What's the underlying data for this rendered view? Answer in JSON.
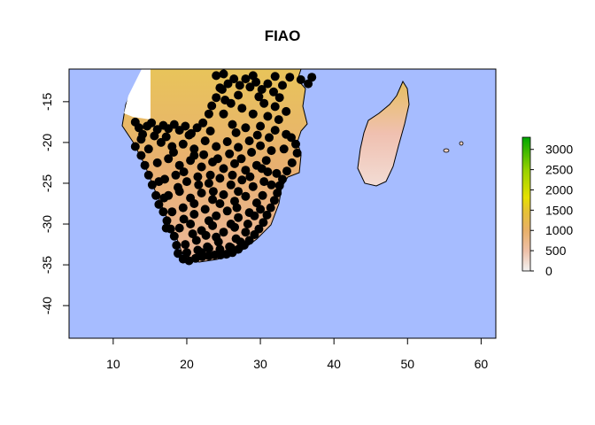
{
  "chart_data": {
    "type": "map",
    "title": "FIAO",
    "xlabel": "",
    "ylabel": "",
    "xlim": [
      4,
      62
    ],
    "ylim": [
      -44,
      -11
    ],
    "x_ticks": [
      10,
      20,
      30,
      40,
      50,
      60
    ],
    "y_ticks": [
      -15,
      -20,
      -25,
      -30,
      -35,
      -40
    ],
    "x_tick_labels": [
      "10",
      "20",
      "30",
      "40",
      "50",
      "60"
    ],
    "y_tick_labels": [
      "-15",
      "-20",
      "-25",
      "-30",
      "-35",
      "-40"
    ],
    "background_color": "#a6bcff",
    "legend": {
      "placement": "right",
      "ticks": [
        0,
        500,
        1000,
        1500,
        2000,
        2500,
        3000
      ],
      "tick_labels": [
        "0",
        "500",
        "1000",
        "1500",
        "2000",
        "2500",
        "3000"
      ],
      "range": [
        0,
        3300
      ],
      "colors": [
        "#f2f2f2",
        "#eec0a8",
        "#e8b06a",
        "#e6c233",
        "#e6e000",
        "#99d200",
        "#00a600"
      ]
    },
    "occurrence_points": [
      [
        13.0,
        -17.5
      ],
      [
        13.5,
        -18.2
      ],
      [
        14.0,
        -19.0
      ],
      [
        14.6,
        -18.0
      ],
      [
        15.2,
        -17.6
      ],
      [
        16.0,
        -18.4
      ],
      [
        16.8,
        -17.9
      ],
      [
        17.5,
        -18.3
      ],
      [
        18.3,
        -17.8
      ],
      [
        19.0,
        -18.5
      ],
      [
        19.8,
        -18.0
      ],
      [
        20.6,
        -18.9
      ],
      [
        21.4,
        -18.2
      ],
      [
        22.2,
        -17.6
      ],
      [
        23.0,
        -16.5
      ],
      [
        23.4,
        -15.5
      ],
      [
        24.0,
        -14.5
      ],
      [
        24.8,
        -13.5
      ],
      [
        25.6,
        -12.8
      ],
      [
        26.4,
        -12.2
      ],
      [
        27.2,
        -13.0
      ],
      [
        28.0,
        -12.2
      ],
      [
        28.6,
        -13.2
      ],
      [
        29.4,
        -12.6
      ],
      [
        30.2,
        -13.5
      ],
      [
        31.0,
        -12.8
      ],
      [
        31.8,
        -13.8
      ],
      [
        32.6,
        -14.5
      ],
      [
        33.0,
        -13.0
      ],
      [
        34.0,
        -12.0
      ],
      [
        35.5,
        -12.3
      ],
      [
        36.5,
        -12.8
      ],
      [
        37.0,
        -12.0
      ],
      [
        24.0,
        -11.8
      ],
      [
        25.0,
        -11.6
      ],
      [
        29.0,
        -11.8
      ],
      [
        32.0,
        -11.9
      ],
      [
        30.5,
        -15.2
      ],
      [
        32.0,
        -15.6
      ],
      [
        33.5,
        -16.2
      ],
      [
        31.0,
        -16.8
      ],
      [
        29.0,
        -16.5
      ],
      [
        27.5,
        -15.8
      ],
      [
        26.0,
        -15.2
      ],
      [
        25.0,
        -16.5
      ],
      [
        26.2,
        -17.8
      ],
      [
        28.0,
        -18.2
      ],
      [
        30.0,
        -18.0
      ],
      [
        32.0,
        -18.5
      ],
      [
        33.5,
        -19.0
      ],
      [
        13.0,
        -20.5
      ],
      [
        13.8,
        -21.6
      ],
      [
        14.3,
        -22.8
      ],
      [
        14.8,
        -24.0
      ],
      [
        15.3,
        -25.2
      ],
      [
        15.8,
        -26.5
      ],
      [
        16.2,
        -27.6
      ],
      [
        16.8,
        -28.5
      ],
      [
        17.3,
        -29.6
      ],
      [
        17.8,
        -30.6
      ],
      [
        18.3,
        -31.5
      ],
      [
        18.6,
        -32.6
      ],
      [
        18.8,
        -33.6
      ],
      [
        19.5,
        -34.3
      ],
      [
        20.3,
        -34.5
      ],
      [
        21.2,
        -34.2
      ],
      [
        22.1,
        -34.0
      ],
      [
        23.0,
        -33.9
      ],
      [
        23.8,
        -33.8
      ],
      [
        24.6,
        -33.8
      ],
      [
        25.4,
        -33.7
      ],
      [
        26.2,
        -33.5
      ],
      [
        27.0,
        -33.1
      ],
      [
        27.8,
        -32.6
      ],
      [
        28.5,
        -32.0
      ],
      [
        29.2,
        -31.3
      ],
      [
        29.8,
        -30.6
      ],
      [
        30.4,
        -29.8
      ],
      [
        30.9,
        -28.9
      ],
      [
        31.4,
        -28.0
      ],
      [
        31.9,
        -27.1
      ],
      [
        32.3,
        -26.2
      ],
      [
        32.6,
        -25.3
      ],
      [
        33.0,
        -24.5
      ],
      [
        33.6,
        -23.5
      ],
      [
        34.3,
        -22.5
      ],
      [
        35.0,
        -21.3
      ],
      [
        34.8,
        -20.2
      ],
      [
        34.2,
        -19.4
      ],
      [
        33.2,
        -20.8
      ],
      [
        16.5,
        -20.0
      ],
      [
        18.0,
        -20.5
      ],
      [
        19.5,
        -20.2
      ],
      [
        21.0,
        -20.8
      ],
      [
        22.5,
        -19.8
      ],
      [
        24.0,
        -20.5
      ],
      [
        25.5,
        -19.9
      ],
      [
        27.0,
        -20.6
      ],
      [
        28.5,
        -19.8
      ],
      [
        30.0,
        -20.4
      ],
      [
        31.5,
        -21.0
      ],
      [
        16.0,
        -22.5
      ],
      [
        17.5,
        -22.0
      ],
      [
        19.0,
        -22.8
      ],
      [
        20.5,
        -22.2
      ],
      [
        22.0,
        -23.0
      ],
      [
        23.5,
        -22.4
      ],
      [
        25.0,
        -23.2
      ],
      [
        26.5,
        -22.6
      ],
      [
        28.0,
        -23.4
      ],
      [
        29.5,
        -22.8
      ],
      [
        31.0,
        -23.6
      ],
      [
        17.0,
        -24.5
      ],
      [
        18.5,
        -24.0
      ],
      [
        20.0,
        -24.8
      ],
      [
        21.5,
        -24.2
      ],
      [
        23.0,
        -25.0
      ],
      [
        24.5,
        -24.4
      ],
      [
        26.0,
        -25.2
      ],
      [
        27.5,
        -24.6
      ],
      [
        29.0,
        -25.4
      ],
      [
        30.5,
        -24.8
      ],
      [
        17.5,
        -26.5
      ],
      [
        19.0,
        -26.0
      ],
      [
        20.5,
        -26.8
      ],
      [
        22.0,
        -26.2
      ],
      [
        23.5,
        -27.0
      ],
      [
        25.0,
        -26.4
      ],
      [
        26.5,
        -27.2
      ],
      [
        28.0,
        -26.6
      ],
      [
        29.5,
        -27.4
      ],
      [
        18.0,
        -28.5
      ],
      [
        19.5,
        -28.0
      ],
      [
        21.0,
        -28.8
      ],
      [
        22.5,
        -28.2
      ],
      [
        24.0,
        -29.0
      ],
      [
        25.5,
        -28.4
      ],
      [
        27.0,
        -29.2
      ],
      [
        28.5,
        -28.6
      ],
      [
        19.0,
        -30.5
      ],
      [
        20.5,
        -30.0
      ],
      [
        22.0,
        -30.8
      ],
      [
        23.5,
        -30.2
      ],
      [
        25.0,
        -31.0
      ],
      [
        26.5,
        -30.4
      ],
      [
        28.0,
        -31.0
      ],
      [
        19.8,
        -32.5
      ],
      [
        21.3,
        -32.0
      ],
      [
        22.8,
        -32.8
      ],
      [
        24.3,
        -32.2
      ],
      [
        25.8,
        -32.8
      ],
      [
        27.3,
        -32.2
      ],
      [
        20.0,
        -33.5
      ],
      [
        21.5,
        -33.2
      ],
      [
        23.0,
        -33.0
      ],
      [
        24.5,
        -33.1
      ],
      [
        26.0,
        -32.9
      ],
      [
        18.8,
        -25.5
      ],
      [
        21.0,
        -27.5
      ],
      [
        24.5,
        -27.5
      ],
      [
        26.8,
        -28.0
      ],
      [
        22.3,
        -21.5
      ],
      [
        25.8,
        -21.4
      ],
      [
        28.8,
        -21.2
      ],
      [
        13.8,
        -19.6
      ],
      [
        14.8,
        -20.8
      ],
      [
        15.6,
        -19.2
      ],
      [
        17.2,
        -19.3
      ],
      [
        20.3,
        -19.1
      ],
      [
        23.2,
        -18.6
      ],
      [
        26.7,
        -18.8
      ],
      [
        29.6,
        -19.1
      ],
      [
        31.2,
        -19.4
      ],
      [
        32.5,
        -17.2
      ],
      [
        29.8,
        -14.4
      ],
      [
        27.0,
        -14.2
      ],
      [
        24.5,
        -13.3
      ],
      [
        25.2,
        -14.8
      ],
      [
        22.0,
        -33.5
      ],
      [
        30.3,
        -26.5
      ],
      [
        31.5,
        -25.2
      ],
      [
        32.2,
        -23.8
      ],
      [
        30.8,
        -22.2
      ],
      [
        17.2,
        -30.5
      ],
      [
        16.9,
        -26.8
      ],
      [
        16.2,
        -24.8
      ],
      [
        19.6,
        -29.4
      ],
      [
        23.0,
        -29.6
      ],
      [
        26.0,
        -30.0
      ],
      [
        20.8,
        -31.2
      ],
      [
        26.7,
        -31.8
      ],
      [
        28.3,
        -30.0
      ],
      [
        29.2,
        -29.0
      ],
      [
        30.0,
        -28.2
      ],
      [
        24.0,
        -31.6
      ],
      [
        22.6,
        -31.4
      ],
      [
        23.6,
        -26.0
      ],
      [
        27.0,
        -26.0
      ],
      [
        21.6,
        -25.2
      ],
      [
        19.6,
        -23.6
      ],
      [
        18.2,
        -21.2
      ],
      [
        21.0,
        -21.6
      ],
      [
        24.2,
        -22.0
      ],
      [
        27.4,
        -22.0
      ],
      [
        30.2,
        -23.2
      ],
      [
        23.2,
        -24.0
      ],
      [
        26.2,
        -24.0
      ],
      [
        28.6,
        -24.2
      ]
    ]
  }
}
